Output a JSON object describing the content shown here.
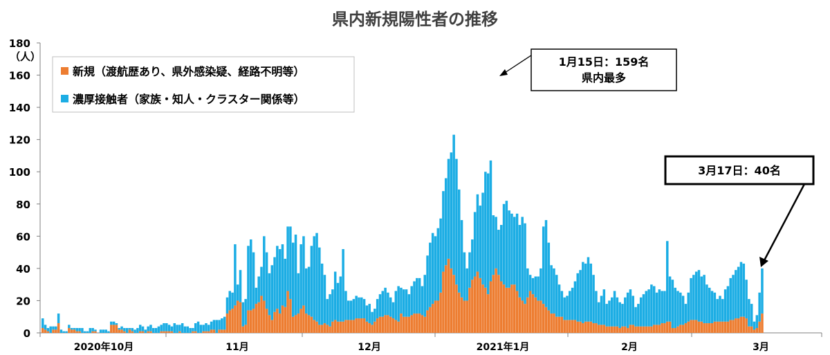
{
  "chart_data": {
    "type": "bar",
    "stacked": true,
    "title": "県内新規陽性者の推移",
    "ylabel": "（人）",
    "ylim": [
      0,
      180
    ],
    "yticks": [
      0,
      20,
      40,
      60,
      80,
      100,
      120,
      140,
      160,
      180
    ],
    "xlabel": "",
    "month_labels": [
      "2020年10月",
      "11月",
      "12月",
      "2021年1月",
      "2月",
      "3月"
    ],
    "legend": [
      "新規（渡航歴あり、県外感染疑、経路不明等）",
      "濃厚接触者（家族・知人・クラスター関係等）"
    ],
    "series_colors": [
      "#ED7D31",
      "#1CADE4"
    ],
    "annotations": [
      {
        "line1": "1月15日：159名",
        "line2": "県内最多"
      },
      {
        "line1": "3月17日：40名"
      }
    ],
    "series": [
      {
        "name": "新規（渡航歴あり、県外感染疑、経路不明等）",
        "values": [
          3,
          2,
          1,
          0,
          2,
          2,
          6,
          0,
          0,
          0,
          3,
          2,
          2,
          1,
          1,
          0,
          0,
          0,
          0,
          1,
          1,
          0,
          0,
          0,
          0,
          0,
          5,
          5,
          5,
          2,
          2,
          1,
          0,
          2,
          1,
          0,
          0,
          1,
          1,
          0,
          1,
          1,
          0,
          0,
          0,
          1,
          1,
          1,
          1,
          1,
          0,
          0,
          1,
          0,
          0,
          0,
          0,
          1,
          1,
          0,
          0,
          1,
          1,
          1,
          2,
          2,
          0,
          2,
          2,
          2,
          12,
          14,
          15,
          17,
          20,
          19,
          4,
          5,
          14,
          14,
          15,
          18,
          19,
          23,
          20,
          15,
          11,
          8,
          13,
          15,
          12,
          17,
          16,
          26,
          21,
          10,
          11,
          12,
          15,
          17,
          12,
          11,
          10,
          8,
          7,
          5,
          5,
          6,
          5,
          4,
          7,
          8,
          7,
          7,
          7,
          8,
          8,
          8,
          8,
          9,
          9,
          9,
          9,
          7,
          6,
          5,
          7,
          9,
          10,
          10,
          11,
          11,
          10,
          9,
          8,
          7,
          12,
          10,
          10,
          10,
          11,
          12,
          12,
          12,
          11,
          10,
          14,
          16,
          18,
          20,
          20,
          25,
          38,
          42,
          46,
          40,
          36,
          30,
          25,
          22,
          20,
          20,
          28,
          33,
          35,
          38,
          34,
          30,
          28,
          24,
          32,
          36,
          40,
          36,
          32,
          30,
          28,
          28,
          30,
          30,
          26,
          22,
          20,
          18,
          22,
          26,
          24,
          22,
          20,
          20,
          18,
          16,
          14,
          12,
          12,
          10,
          10,
          10,
          8,
          8,
          8,
          8,
          8,
          7,
          7,
          6,
          7,
          7,
          7,
          6,
          6,
          5,
          5,
          5,
          4,
          4,
          4,
          4,
          4,
          3,
          4,
          4,
          3,
          5,
          5,
          4,
          4,
          4,
          4,
          4,
          4,
          4,
          5,
          5,
          5,
          6,
          6,
          7,
          7,
          3,
          3,
          4,
          5,
          5,
          6,
          7,
          8,
          8,
          8,
          7,
          7,
          6,
          6,
          6,
          6,
          7,
          7,
          7,
          7,
          7,
          7,
          8,
          8,
          9,
          9,
          10,
          10,
          9,
          4,
          4,
          2,
          3,
          7,
          12
        ]
      },
      {
        "name": "濃厚接触者（家族・知人・クラスター関係等）",
        "values": [
          6,
          3,
          2,
          4,
          2,
          2,
          6,
          2,
          1,
          1,
          2,
          1,
          1,
          2,
          2,
          3,
          1,
          1,
          3,
          2,
          1,
          0,
          2,
          2,
          2,
          1,
          2,
          2,
          1,
          1,
          2,
          2,
          3,
          1,
          2,
          2,
          3,
          4,
          3,
          2,
          3,
          4,
          3,
          3,
          4,
          4,
          5,
          5,
          4,
          3,
          6,
          5,
          4,
          6,
          4,
          4,
          3,
          2,
          5,
          7,
          5,
          4,
          5,
          4,
          5,
          6,
          8,
          6,
          7,
          8,
          10,
          12,
          10,
          38,
          10,
          20,
          15,
          16,
          40,
          44,
          35,
          10,
          16,
          18,
          40,
          35,
          26,
          34,
          34,
          39,
          40,
          38,
          30,
          40,
          45,
          46,
          50,
          25,
          40,
          43,
          28,
          30,
          44,
          52,
          55,
          48,
          38,
          30,
          16,
          20,
          20,
          30,
          24,
          28,
          45,
          18,
          12,
          12,
          13,
          14,
          13,
          13,
          12,
          10,
          12,
          8,
          8,
          12,
          14,
          16,
          17,
          14,
          12,
          10,
          18,
          22,
          16,
          17,
          17,
          14,
          18,
          20,
          22,
          22,
          18,
          26,
          34,
          40,
          44,
          40,
          45,
          46,
          50,
          54,
          62,
          72,
          87,
          78,
          64,
          48,
          30,
          20,
          22,
          25,
          40,
          48,
          45,
          57,
          72,
          75,
          75,
          37,
          32,
          28,
          35,
          50,
          54,
          48,
          44,
          42,
          48,
          45,
          52,
          50,
          18,
          10,
          10,
          13,
          15,
          20,
          48,
          54,
          42,
          30,
          28,
          26,
          20,
          16,
          14,
          15,
          18,
          20,
          24,
          30,
          32,
          38,
          36,
          40,
          36,
          30,
          20,
          14,
          18,
          22,
          14,
          16,
          18,
          22,
          18,
          16,
          14,
          18,
          22,
          22,
          18,
          12,
          14,
          18,
          20,
          22,
          23,
          26,
          24,
          20,
          22,
          20,
          20,
          50,
          28,
          30,
          25,
          22,
          20,
          18,
          12,
          18,
          26,
          28,
          30,
          32,
          28,
          30,
          24,
          22,
          20,
          18,
          14,
          16,
          14,
          20,
          22,
          26,
          28,
          30,
          32,
          34,
          33,
          24,
          17,
          14,
          5,
          8,
          18,
          28
        ]
      }
    ]
  }
}
